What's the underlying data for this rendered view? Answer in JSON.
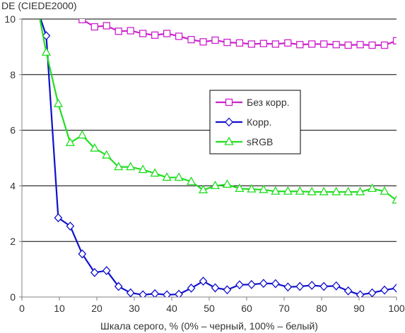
{
  "chart_data": {
    "type": "line",
    "title": "",
    "ylabel": "DE (CIEDE2000)",
    "xlabel": "Шкала серого, % (0% – черный, 100% – белый)",
    "xlim": [
      0,
      100
    ],
    "ylim": [
      0,
      10
    ],
    "xticks": [
      0,
      10,
      20,
      30,
      40,
      50,
      60,
      70,
      80,
      90,
      100
    ],
    "yticks": [
      0,
      2,
      4,
      6,
      8,
      10
    ],
    "grid": "horizontal",
    "legend_position": "center-right",
    "series": [
      {
        "name": "Без корр.",
        "color": "#cc22cc",
        "marker": "square",
        "points": [
          [
            16.1,
            9.98
          ],
          [
            19.4,
            9.72
          ],
          [
            22.6,
            9.76
          ],
          [
            25.8,
            9.56
          ],
          [
            29.0,
            9.58
          ],
          [
            32.3,
            9.48
          ],
          [
            35.5,
            9.42
          ],
          [
            38.7,
            9.48
          ],
          [
            41.9,
            9.38
          ],
          [
            45.2,
            9.26
          ],
          [
            48.4,
            9.18
          ],
          [
            51.6,
            9.24
          ],
          [
            54.8,
            9.16
          ],
          [
            58.1,
            9.14
          ],
          [
            61.3,
            9.1
          ],
          [
            64.5,
            9.12
          ],
          [
            67.7,
            9.1
          ],
          [
            71.0,
            9.14
          ],
          [
            74.2,
            9.08
          ],
          [
            77.4,
            9.1
          ],
          [
            80.6,
            9.1
          ],
          [
            83.9,
            9.08
          ],
          [
            87.1,
            9.06
          ],
          [
            90.3,
            9.08
          ],
          [
            93.5,
            9.06
          ],
          [
            96.8,
            9.06
          ],
          [
            100.0,
            9.22
          ]
        ]
      },
      {
        "name": "Корр.",
        "color": "#1010cc",
        "marker": "diamond",
        "points": [
          [
            6.5,
            9.4
          ],
          [
            9.7,
            2.85
          ],
          [
            12.9,
            2.55
          ],
          [
            16.1,
            1.55
          ],
          [
            19.4,
            0.88
          ],
          [
            22.6,
            0.95
          ],
          [
            25.8,
            0.38
          ],
          [
            29.0,
            0.15
          ],
          [
            32.3,
            0.08
          ],
          [
            35.5,
            0.12
          ],
          [
            38.7,
            0.08
          ],
          [
            41.9,
            0.1
          ],
          [
            45.2,
            0.32
          ],
          [
            48.4,
            0.57
          ],
          [
            51.6,
            0.33
          ],
          [
            54.8,
            0.26
          ],
          [
            58.1,
            0.44
          ],
          [
            61.3,
            0.45
          ],
          [
            64.5,
            0.49
          ],
          [
            67.7,
            0.48
          ],
          [
            71.0,
            0.36
          ],
          [
            74.2,
            0.38
          ],
          [
            77.4,
            0.42
          ],
          [
            80.6,
            0.38
          ],
          [
            83.9,
            0.4
          ],
          [
            87.1,
            0.22
          ],
          [
            90.3,
            0.08
          ],
          [
            93.5,
            0.15
          ],
          [
            96.8,
            0.25
          ],
          [
            100.0,
            0.32
          ]
        ]
      },
      {
        "name": "sRGB",
        "color": "#22dd22",
        "marker": "triangle",
        "points": [
          [
            6.5,
            8.8
          ],
          [
            9.7,
            6.95
          ],
          [
            12.9,
            5.55
          ],
          [
            16.1,
            5.82
          ],
          [
            19.4,
            5.35
          ],
          [
            22.6,
            5.1
          ],
          [
            25.8,
            4.68
          ],
          [
            29.0,
            4.68
          ],
          [
            32.3,
            4.58
          ],
          [
            35.5,
            4.45
          ],
          [
            38.7,
            4.3
          ],
          [
            41.9,
            4.3
          ],
          [
            45.2,
            4.15
          ],
          [
            48.4,
            3.85
          ],
          [
            51.6,
            4.0
          ],
          [
            54.8,
            4.05
          ],
          [
            58.1,
            3.9
          ],
          [
            61.3,
            3.88
          ],
          [
            64.5,
            3.86
          ],
          [
            67.7,
            3.8
          ],
          [
            71.0,
            3.8
          ],
          [
            74.2,
            3.8
          ],
          [
            77.4,
            3.78
          ],
          [
            80.6,
            3.78
          ],
          [
            83.9,
            3.78
          ],
          [
            87.1,
            3.78
          ],
          [
            90.3,
            3.78
          ],
          [
            93.5,
            3.9
          ],
          [
            96.8,
            3.8
          ],
          [
            100.0,
            3.48
          ]
        ]
      }
    ],
    "steep_segments": [
      {
        "series": "Корр.",
        "from": [
          5.0,
          10.0
        ],
        "to": [
          6.5,
          9.4
        ]
      },
      {
        "series": "sRGB",
        "from": [
          4.8,
          10.0
        ],
        "to": [
          6.5,
          8.8
        ]
      }
    ]
  }
}
